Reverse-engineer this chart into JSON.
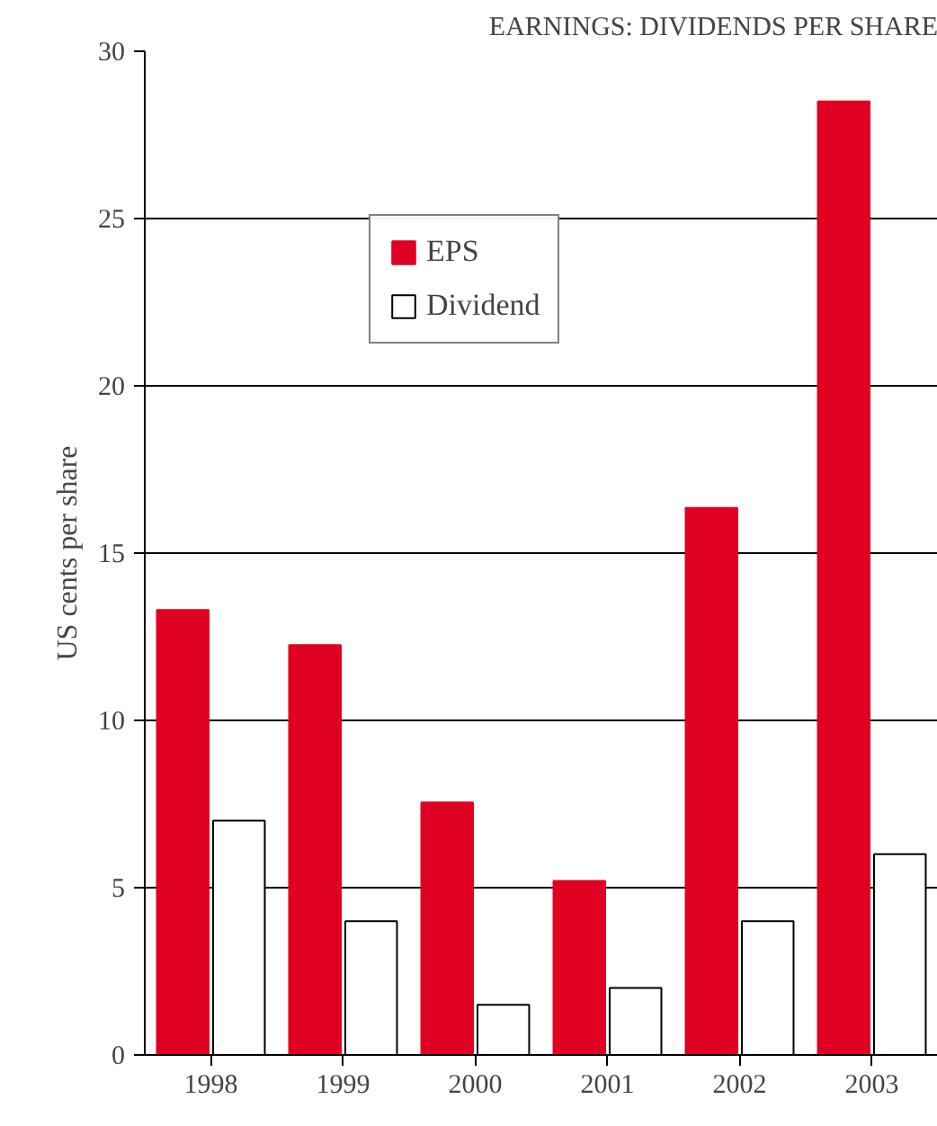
{
  "chart_data": {
    "type": "bar",
    "title": "EARNINGS: DIVIDENDS PER SHARE",
    "ylabel": "US cents per share",
    "categories": [
      "1998",
      "1999",
      "2000",
      "2001",
      "2002",
      "2003"
    ],
    "series": [
      {
        "name": "EPS",
        "color": "#e00022",
        "values": [
          13.3,
          12.25,
          7.55,
          5.2,
          16.35,
          28.5
        ]
      },
      {
        "name": "Dividend",
        "color": "#ffffff",
        "values": [
          7,
          4,
          1.5,
          2,
          4,
          6
        ]
      }
    ],
    "ylim": [
      0,
      30
    ],
    "yticks": [
      0,
      5,
      10,
      15,
      20,
      25,
      30
    ],
    "grid": "y",
    "legend": "top left"
  }
}
